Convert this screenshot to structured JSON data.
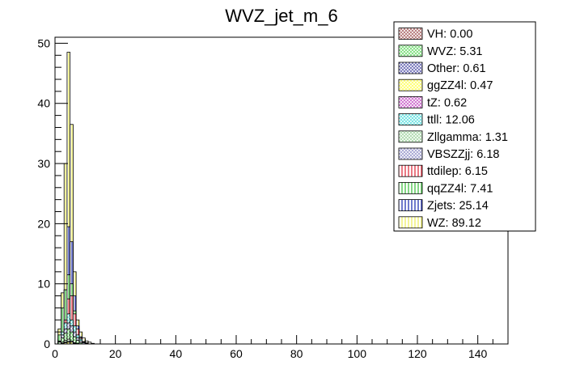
{
  "chart_data": {
    "type": "bar",
    "title": "WVZ_jet_m_6",
    "xlabel": "",
    "ylabel": "",
    "xlim": [
      0,
      150
    ],
    "ylim": [
      0,
      51
    ],
    "bin_width": 1,
    "stacked": false,
    "x_ticks": [
      0,
      20,
      40,
      60,
      80,
      100,
      120,
      140
    ],
    "y_ticks": [
      0,
      10,
      20,
      30,
      40,
      50
    ],
    "legend_position": "top-right",
    "legend": [
      {
        "label": "VH: 0.00",
        "color": "#b07070",
        "hatch": "cross"
      },
      {
        "label": "WVZ: 5.31",
        "color": "#77dd77",
        "hatch": "cross"
      },
      {
        "label": "Other: 0.61",
        "color": "#6b6bb5",
        "hatch": "cross"
      },
      {
        "label": "ggZZ4l: 0.47",
        "color": "#ffff66",
        "hatch": "cross"
      },
      {
        "label": "tZ: 0.62",
        "color": "#cc66cc",
        "hatch": "cross"
      },
      {
        "label": "ttll: 12.06",
        "color": "#66e0e0",
        "hatch": "cross"
      },
      {
        "label": "Zllgamma: 1.31",
        "color": "#a8d8a8",
        "hatch": "cross"
      },
      {
        "label": "VBSZZjj: 6.18",
        "color": "#9f9fcf",
        "hatch": "cross"
      },
      {
        "label": "ttdilep: 6.15",
        "color": "#dd2233",
        "hatch": "vertical"
      },
      {
        "label": "qqZZ4l: 7.41",
        "color": "#33bb33",
        "hatch": "vertical"
      },
      {
        "label": "Zjets: 25.14",
        "color": "#1122aa",
        "hatch": "vertical"
      },
      {
        "label": "WZ: 89.12",
        "color": "#eeee55",
        "hatch": "vertical"
      }
    ],
    "series": [
      {
        "name": "WZ",
        "color": "#eeee55",
        "hatch": "vertical",
        "x": [
          1,
          2,
          3,
          4,
          5,
          6,
          7,
          8,
          9,
          10,
          11,
          12
        ],
        "values": [
          2.5,
          8.5,
          30,
          48.5,
          36.5,
          12,
          4,
          2,
          1,
          0.5,
          0.3,
          0.1
        ]
      },
      {
        "name": "Zjets",
        "color": "#1122aa",
        "hatch": "vertical",
        "x": [
          1,
          2,
          3,
          4,
          5,
          6,
          7,
          8,
          9,
          10
        ],
        "values": [
          0.8,
          2.5,
          9,
          19.5,
          17,
          8,
          3,
          1.2,
          0.4,
          0.2
        ]
      },
      {
        "name": "qqZZ4l",
        "color": "#33bb33",
        "hatch": "vertical",
        "x": [
          1,
          2,
          3,
          4,
          5,
          6,
          7,
          8,
          9
        ],
        "values": [
          1.5,
          6,
          9,
          11.5,
          10,
          5.5,
          2.5,
          1,
          0.3
        ]
      },
      {
        "name": "ttdilep",
        "color": "#dd2233",
        "hatch": "vertical",
        "x": [
          1,
          2,
          3,
          4,
          5,
          6,
          7,
          8,
          9
        ],
        "values": [
          0.3,
          1,
          4,
          7.5,
          8,
          5,
          2.5,
          1,
          0.4
        ]
      },
      {
        "name": "ttll",
        "color": "#66e0e0",
        "hatch": "cross",
        "x": [
          1,
          2,
          3,
          4,
          5,
          6,
          7,
          8,
          9,
          10
        ],
        "values": [
          0.5,
          2,
          3.5,
          5,
          4,
          3,
          1.5,
          0.8,
          0.3,
          0.1
        ]
      },
      {
        "name": "VBSZZjj",
        "color": "#9f9fcf",
        "hatch": "cross",
        "x": [
          1,
          2,
          3,
          4,
          5,
          6,
          7,
          8,
          9
        ],
        "values": [
          0.4,
          1.5,
          2.5,
          3.5,
          3,
          2,
          1,
          0.5,
          0.2
        ]
      },
      {
        "name": "WVZ",
        "color": "#77dd77",
        "hatch": "cross",
        "x": [
          1,
          2,
          3,
          4,
          5,
          6,
          7,
          8
        ],
        "values": [
          0.3,
          1,
          1.8,
          2.5,
          2,
          1.2,
          0.6,
          0.2
        ]
      },
      {
        "name": "Zllgamma",
        "color": "#a8d8a8",
        "hatch": "cross",
        "x": [
          2,
          3,
          4,
          5,
          6,
          7
        ],
        "values": [
          0.3,
          0.6,
          0.8,
          0.5,
          0.2,
          0.1
        ]
      },
      {
        "name": "tZ",
        "color": "#cc66cc",
        "hatch": "cross",
        "x": [
          2,
          3,
          4,
          5,
          6
        ],
        "values": [
          0.1,
          0.3,
          0.4,
          0.3,
          0.1
        ]
      },
      {
        "name": "Other",
        "color": "#6b6bb5",
        "hatch": "cross",
        "x": [
          2,
          3,
          4,
          5,
          6
        ],
        "values": [
          0.1,
          0.3,
          0.4,
          0.3,
          0.2
        ]
      },
      {
        "name": "ggZZ4l",
        "color": "#ffff66",
        "hatch": "cross",
        "x": [
          2,
          3,
          4,
          5,
          6
        ],
        "values": [
          0.1,
          0.2,
          0.3,
          0.3,
          0.1
        ]
      },
      {
        "name": "VH",
        "color": "#b07070",
        "hatch": "cross",
        "x": [],
        "values": []
      }
    ]
  }
}
